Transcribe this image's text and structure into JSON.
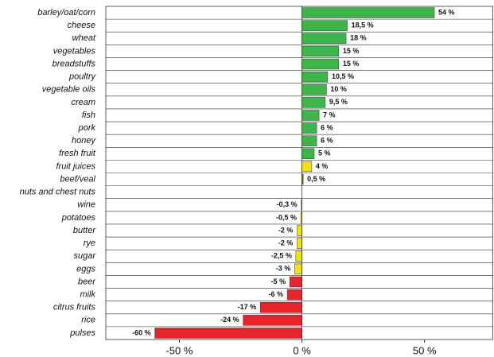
{
  "chart_data": {
    "type": "barh",
    "categories": [
      "barley/oat/corn",
      "cheese",
      "wheat",
      "vegetables",
      "breadstuffs",
      "poultry",
      "vegetable oils",
      "cream",
      "fish",
      "pork",
      "honey",
      "fresh fruit",
      "fruit juices",
      "beef/veal",
      "nuts and chest nuts",
      "wine",
      "potatoes",
      "butter",
      "rye",
      "sugar",
      "eggs",
      "beer",
      "milk",
      "citrus fruits",
      "rice",
      "pulses"
    ],
    "values": [
      54,
      18.5,
      18,
      15,
      15,
      10.5,
      10,
      9.5,
      7,
      6,
      6,
      5,
      4,
      0.5,
      null,
      -0.3,
      -0.5,
      -2,
      -2,
      -2.5,
      -3,
      -5,
      -6,
      -17,
      -24,
      -60
    ],
    "value_labels": [
      "54 %",
      "18,5 %",
      "18 %",
      "15 %",
      "15 %",
      "10,5 %",
      "10 %",
      "9,5 %",
      "7 %",
      "6 %",
      "6 %",
      "5 %",
      "4 %",
      "0,5 %",
      null,
      "-0,3 %",
      "-0,5 %",
      "-2 %",
      "-2 %",
      "-2,5 %",
      "-3 %",
      "-5 %",
      "-6 %",
      "-17 %",
      "-24 %",
      "-60 %"
    ],
    "colors": [
      "#3db54a",
      "#3db54a",
      "#3db54a",
      "#3db54a",
      "#3db54a",
      "#3db54a",
      "#3db54a",
      "#3db54a",
      "#3db54a",
      "#3db54a",
      "#3db54a",
      "#3db54a",
      "#f3e01c",
      "#6b6b2a",
      null,
      "#f3e01c",
      "#f3e01c",
      "#f3e01c",
      "#f3e01c",
      "#f3e01c",
      "#f3e01c",
      "#e5242b",
      "#e5242b",
      "#e5242b",
      "#e5242b",
      "#e5242b"
    ],
    "xlim": [
      -80,
      78
    ],
    "xticks": [
      {
        "value": -50,
        "label": "-50 %"
      },
      {
        "value": 0,
        "label": "0 %"
      },
      {
        "value": 50,
        "label": "50 %"
      }
    ]
  }
}
